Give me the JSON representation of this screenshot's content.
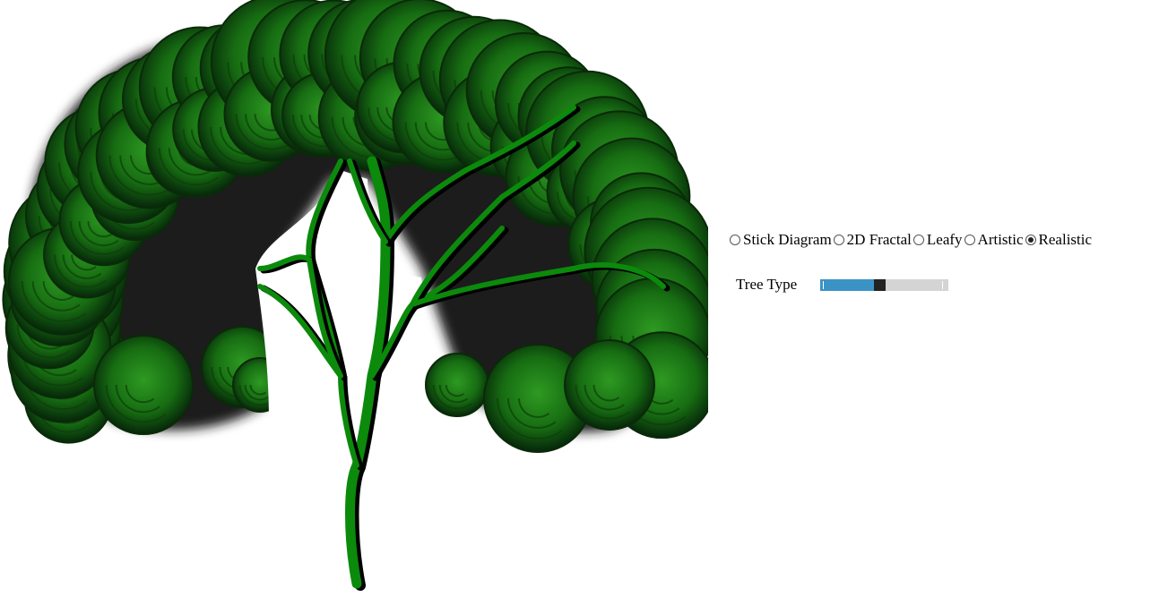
{
  "render_modes": [
    {
      "label": "Stick Diagram",
      "checked": false
    },
    {
      "label": "2D Fractal",
      "checked": false
    },
    {
      "label": "Leafy",
      "checked": false
    },
    {
      "label": "Artistic",
      "checked": false
    },
    {
      "label": "Realistic",
      "checked": true
    }
  ],
  "tree_type": {
    "label": "Tree Type",
    "value_fraction": 0.46
  },
  "colors": {
    "trunk": "#0b8a0b",
    "foliage": "#1a7a14",
    "foliage_dark": "#0a2a08",
    "slider_fill": "#3b93c5",
    "slider_track": "#d4d4d4",
    "slider_thumb": "#222222"
  }
}
